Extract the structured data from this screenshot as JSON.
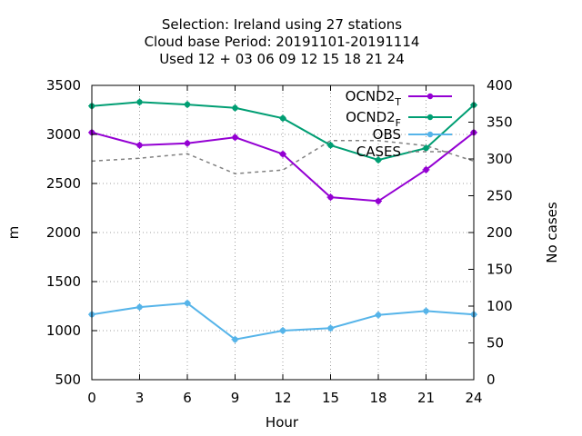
{
  "title": {
    "line1": "Selection: Ireland using    27 stations",
    "line2": "Cloud base   Period: 20191101-20191114",
    "line3": "Used  12 + 03 06 09 12 15 18 21 24"
  },
  "chart_data": {
    "type": "line",
    "xlabel": "Hour",
    "ylabel": "m",
    "y2label": "No cases",
    "x": [
      0,
      3,
      6,
      9,
      12,
      15,
      18,
      21,
      24
    ],
    "xlim": [
      0,
      24
    ],
    "ylim": [
      500,
      3500
    ],
    "y2lim": [
      0,
      400
    ],
    "x_ticks": [
      0,
      3,
      6,
      9,
      12,
      15,
      18,
      21,
      24
    ],
    "y_ticks": [
      500,
      1000,
      1500,
      2000,
      2500,
      3000,
      3500
    ],
    "y2_ticks": [
      0,
      50,
      100,
      150,
      200,
      250,
      300,
      350,
      400
    ],
    "grid": true,
    "legend_position": "top-right",
    "series": [
      {
        "name": "OCND2",
        "name_sub": "T",
        "axis": "left",
        "color": "#9400d3",
        "style": "solid",
        "marker": true,
        "values": [
          3020,
          2890,
          2910,
          2970,
          2800,
          2360,
          2320,
          2640,
          3020
        ]
      },
      {
        "name": "OCND2",
        "name_sub": "F",
        "axis": "left",
        "color": "#009e73",
        "style": "solid",
        "marker": true,
        "values": [
          3290,
          3330,
          3305,
          3270,
          3165,
          2890,
          2740,
          2860,
          3300
        ]
      },
      {
        "name": "OBS",
        "name_sub": "",
        "axis": "left",
        "color": "#56b4e9",
        "style": "solid",
        "marker": true,
        "values": [
          1165,
          1240,
          1280,
          910,
          1000,
          1025,
          1160,
          1200,
          1165
        ]
      },
      {
        "name": "CASES",
        "name_sub": "",
        "axis": "right",
        "color": "#808080",
        "style": "dashed",
        "marker": false,
        "values": [
          297,
          301,
          307,
          280,
          285,
          325,
          325,
          318,
          297
        ]
      }
    ]
  }
}
